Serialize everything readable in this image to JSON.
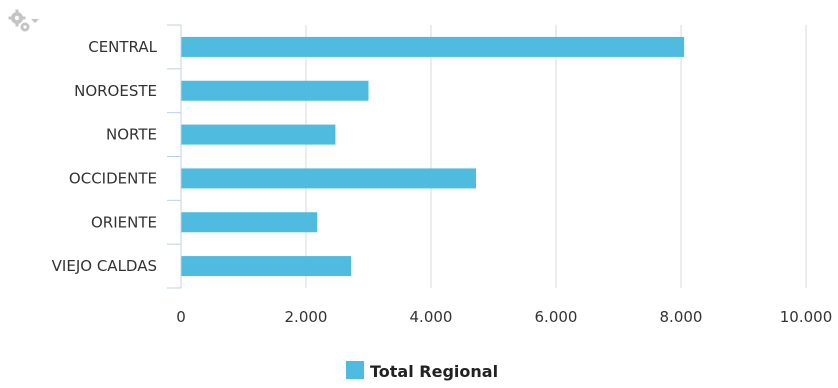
{
  "chart_data": {
    "type": "bar",
    "orientation": "horizontal",
    "categories": [
      "CENTRAL",
      "NOROESTE",
      "NORTE",
      "OCCIDENTE",
      "ORIENTE",
      "VIEJO CALDAS"
    ],
    "series": [
      {
        "name": "Total Regional",
        "values": [
          8050,
          3000,
          2470,
          4720,
          2180,
          2720
        ]
      }
    ],
    "xlim": [
      0,
      10000
    ],
    "xticks": [
      "0",
      "2.000",
      "4.000",
      "6.000",
      "8.000",
      "10.000"
    ],
    "grid": true,
    "legend_position": "bottom-center",
    "colors": {
      "bar": "#4fbbde",
      "grid": "#d8d8d8",
      "axis": "#c0d0e0"
    }
  },
  "toolbar": {
    "menu_icon": "gear-icon"
  }
}
